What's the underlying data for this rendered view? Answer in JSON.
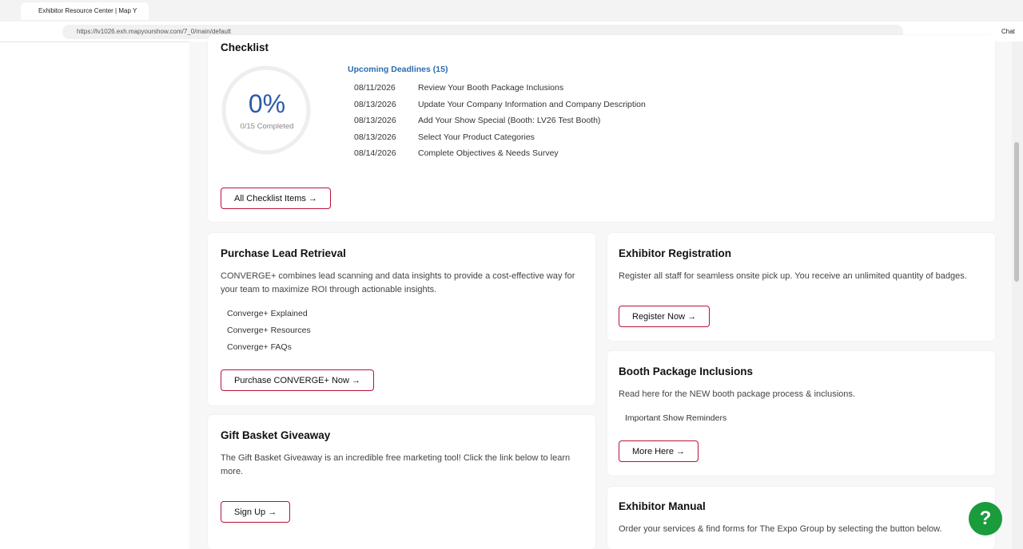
{
  "browser": {
    "tab_title": "Exhibitor Resource Center | Map Y",
    "url": "https://lv1026.exh.mapyourshow.com/7_0/main/default",
    "chat": "Chat"
  },
  "checklist": {
    "title": "Checklist",
    "percent": "0%",
    "completed": "0/15 Completed",
    "deadlines_title": "Upcoming Deadlines (15)",
    "deadlines": [
      [
        "08/11/2026",
        "Review Your Booth Package Inclusions"
      ],
      [
        "08/13/2026",
        "Update Your Company Information and Company Description"
      ],
      [
        "08/13/2026",
        "Add Your Show Special (Booth: LV26 Test Booth)"
      ],
      [
        "08/13/2026",
        "Select Your Product Categories"
      ],
      [
        "08/14/2026",
        "Complete Objectives & Needs Survey"
      ]
    ],
    "button": "All Checklist Items →"
  },
  "lead_retrieval": {
    "title": "Purchase Lead Retrieval",
    "description": "CONVERGE+ combines lead scanning and data insights to provide a cost-effective way for your team to maximize ROI through actionable insights.",
    "links": [
      "Converge+ Explained",
      "Converge+ Resources",
      "Converge+ FAQs"
    ],
    "button": "Purchase CONVERGE+ Now →"
  },
  "gift_basket": {
    "title": "Gift Basket Giveaway",
    "description": "The Gift Basket Giveaway is an incredible free marketing tool! Click the link below to learn more.",
    "button": "Sign Up →"
  },
  "registration": {
    "title": "Exhibitor Registration",
    "description": "Register all staff for seamless onsite pick up. You receive an unlimited quantity of badges.",
    "button": "Register Now →"
  },
  "booth_package": {
    "title": "Booth Package Inclusions",
    "description": "Read here for the NEW booth package process & inclusions.",
    "links": [
      "Important Show Reminders"
    ],
    "button": "More Here →"
  },
  "manual": {
    "title": "Exhibitor Manual",
    "description": "Order your services & find forms for The Expo Group by selecting the button below."
  },
  "help": "?"
}
